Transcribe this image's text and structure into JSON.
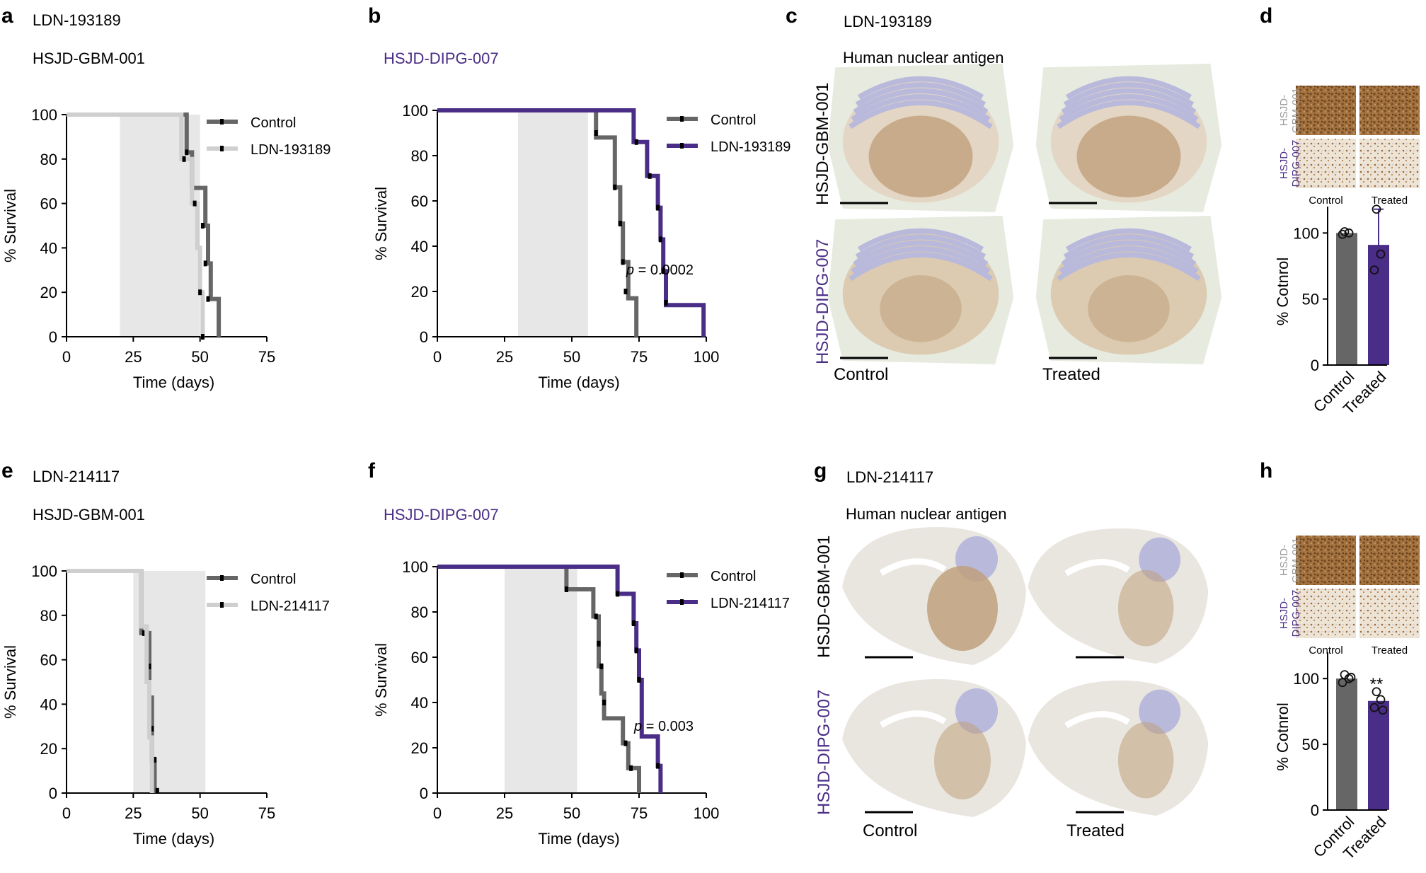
{
  "colors": {
    "control": "#666666",
    "ldn193189_gbm": "#cfcfcf",
    "ldn214117_gbm": "#cfcfcf",
    "treated_dipg": "#4a2d86",
    "shade": "#e7e7e7",
    "tissue_bg": "#e6eadf",
    "tissue_brown": "#bfa07c",
    "cerebellum_blue": "#b9b9dc"
  },
  "panels": {
    "a": {
      "letter": "a",
      "compound": "LDN-193189",
      "model": "HSJD-GBM-001"
    },
    "b": {
      "letter": "b",
      "model": "HSJD-DIPG-007"
    },
    "c": {
      "letter": "c",
      "compound": "LDN-193189",
      "stain": "Human nuclear antigen",
      "row_labels": [
        "HSJD-GBM-001",
        "HSJD-DIPG-007"
      ],
      "col_labels": [
        "Control",
        "Treated"
      ]
    },
    "d": {
      "letter": "d",
      "mini_row_labels": [
        "HSJD-\nGBM-001",
        "HSJD-\nDIPG-007"
      ],
      "mini_col_labels": [
        "Control",
        "Treated"
      ]
    },
    "e": {
      "letter": "e",
      "compound": "LDN-214117",
      "model": "HSJD-GBM-001"
    },
    "f": {
      "letter": "f",
      "model": "HSJD-DIPG-007"
    },
    "g": {
      "letter": "g",
      "compound": "LDN-214117",
      "stain": "Human nuclear antigen",
      "row_labels": [
        "HSJD-GBM-001",
        "HSJD-DIPG-007"
      ],
      "col_labels": [
        "Control",
        "Treated"
      ]
    },
    "h": {
      "letter": "h",
      "mini_row_labels": [
        "HSJD-\nGBM-001",
        "HSJD-\nDIPG-007"
      ],
      "mini_col_labels": [
        "Control",
        "Treated"
      ],
      "significance": "**"
    }
  },
  "chart_data": [
    {
      "id": "a",
      "type": "line",
      "title": "",
      "xlabel": "Time (days)",
      "ylabel": "% Survival",
      "xlim": [
        0,
        75
      ],
      "ylim": [
        0,
        100
      ],
      "xticks": [
        0,
        25,
        50,
        75
      ],
      "yticks": [
        0,
        20,
        40,
        60,
        80,
        100
      ],
      "shaded_x": [
        20,
        50
      ],
      "legend": "top-right",
      "series": [
        {
          "name": "Control",
          "color": "control",
          "steps": [
            [
              0,
              100
            ],
            [
              45,
              100
            ],
            [
              45,
              83
            ],
            [
              47,
              83
            ],
            [
              47,
              67
            ],
            [
              52,
              67
            ],
            [
              52,
              50
            ],
            [
              53,
              50
            ],
            [
              53,
              33
            ],
            [
              54,
              33
            ],
            [
              54,
              17
            ],
            [
              57,
              17
            ],
            [
              57,
              0
            ]
          ],
          "censor": [
            [
              45,
              83
            ],
            [
              47,
              67
            ],
            [
              51,
              50
            ],
            [
              52,
              33
            ],
            [
              53,
              17
            ]
          ]
        },
        {
          "name": "LDN-193189",
          "color": "ldn193189_gbm",
          "steps": [
            [
              0,
              100
            ],
            [
              43,
              100
            ],
            [
              43,
              80
            ],
            [
              47,
              80
            ],
            [
              47,
              60
            ],
            [
              49,
              60
            ],
            [
              49,
              40
            ],
            [
              50,
              40
            ],
            [
              50,
              20
            ],
            [
              51,
              20
            ],
            [
              51,
              0
            ]
          ],
          "censor": [
            [
              44,
              80
            ],
            [
              48,
              60
            ],
            [
              50,
              20
            ],
            [
              51,
              0
            ]
          ]
        }
      ]
    },
    {
      "id": "b",
      "type": "line",
      "title": "",
      "xlabel": "Time (days)",
      "ylabel": "% Survival",
      "xlim": [
        0,
        100
      ],
      "ylim": [
        0,
        100
      ],
      "xticks": [
        0,
        25,
        50,
        75,
        100
      ],
      "yticks": [
        0,
        20,
        40,
        60,
        80,
        100
      ],
      "shaded_x": [
        30,
        56
      ],
      "legend": "top-right",
      "annotation": {
        "p_label": "p",
        "text": " = 0.0002"
      },
      "series": [
        {
          "name": "Control",
          "color": "control",
          "steps": [
            [
              0,
              100
            ],
            [
              59,
              100
            ],
            [
              59,
              88
            ],
            [
              66,
              88
            ],
            [
              66,
              66
            ],
            [
              68,
              66
            ],
            [
              68,
              50
            ],
            [
              69,
              50
            ],
            [
              69,
              33
            ],
            [
              71,
              33
            ],
            [
              71,
              17
            ],
            [
              74,
              17
            ],
            [
              74,
              0
            ]
          ],
          "censor": [
            [
              59,
              90
            ],
            [
              66,
              66
            ],
            [
              68,
              50
            ],
            [
              69,
              33
            ],
            [
              70,
              20
            ]
          ]
        },
        {
          "name": "LDN-193189",
          "color": "treated_dipg",
          "steps": [
            [
              0,
              100
            ],
            [
              73,
              100
            ],
            [
              73,
              86
            ],
            [
              78,
              86
            ],
            [
              78,
              71
            ],
            [
              82,
              71
            ],
            [
              82,
              57
            ],
            [
              83,
              57
            ],
            [
              83,
              43
            ],
            [
              84,
              43
            ],
            [
              84,
              29
            ],
            [
              85,
              29
            ],
            [
              85,
              14
            ],
            [
              99,
              14
            ],
            [
              99,
              0
            ]
          ],
          "censor": [
            [
              74,
              86
            ],
            [
              79,
              71
            ],
            [
              82,
              57
            ],
            [
              83,
              43
            ],
            [
              84,
              29
            ],
            [
              85,
              15
            ]
          ]
        }
      ]
    },
    {
      "id": "d",
      "type": "bar",
      "xlabel": "",
      "ylabel": "% Cotnrol",
      "ylim": [
        0,
        120
      ],
      "yticks": [
        0,
        50,
        100
      ],
      "categories": [
        "Control",
        "Treated"
      ],
      "values": [
        100,
        91
      ],
      "errors": [
        0,
        27
      ],
      "points": [
        [
          101,
          100,
          99
        ],
        [
          118,
          84,
          72
        ]
      ],
      "colors": [
        "control",
        "treated_dipg"
      ]
    },
    {
      "id": "e",
      "type": "line",
      "title": "",
      "xlabel": "Time (days)",
      "ylabel": "% Survival",
      "xlim": [
        0,
        75
      ],
      "ylim": [
        0,
        100
      ],
      "xticks": [
        0,
        25,
        50,
        75
      ],
      "yticks": [
        0,
        20,
        40,
        60,
        80,
        100
      ],
      "shaded_x": [
        25,
        52
      ],
      "legend": "top-right",
      "series": [
        {
          "name": "Control",
          "color": "control",
          "steps": [
            [
              0,
              100
            ],
            [
              28,
              100
            ],
            [
              28,
              72
            ],
            [
              31,
              72
            ],
            [
              31,
              43
            ],
            [
              32,
              43
            ],
            [
              32,
              15
            ],
            [
              33,
              15
            ],
            [
              33,
              0
            ]
          ],
          "censor": [
            [
              28,
              86
            ],
            [
              29,
              72
            ],
            [
              31,
              57
            ],
            [
              31,
              43
            ],
            [
              32,
              29
            ],
            [
              33,
              15
            ],
            [
              34,
              1
            ]
          ]
        },
        {
          "name": "LDN-214117",
          "color": "ldn214117_gbm",
          "steps": [
            [
              0,
              100
            ],
            [
              28,
              100
            ],
            [
              28,
              75
            ],
            [
              30,
              75
            ],
            [
              30,
              50
            ],
            [
              31,
              50
            ],
            [
              31,
              25
            ],
            [
              32,
              25
            ],
            [
              32,
              0
            ]
          ],
          "censor": []
        }
      ]
    },
    {
      "id": "f",
      "type": "line",
      "title": "",
      "xlabel": "Time (days)",
      "ylabel": "% Survival",
      "xlim": [
        0,
        100
      ],
      "ylim": [
        0,
        100
      ],
      "xticks": [
        0,
        25,
        50,
        75,
        100
      ],
      "yticks": [
        0,
        20,
        40,
        60,
        80,
        100
      ],
      "shaded_x": [
        25,
        52
      ],
      "legend": "top-right",
      "annotation": {
        "p_label": "p",
        "text": " = 0.003"
      },
      "series": [
        {
          "name": "Control",
          "color": "control",
          "steps": [
            [
              0,
              100
            ],
            [
              48,
              100
            ],
            [
              48,
              90
            ],
            [
              58,
              90
            ],
            [
              58,
              78
            ],
            [
              60,
              78
            ],
            [
              60,
              56
            ],
            [
              61,
              56
            ],
            [
              61,
              44
            ],
            [
              62,
              44
            ],
            [
              62,
              33
            ],
            [
              69,
              33
            ],
            [
              69,
              22
            ],
            [
              71,
              22
            ],
            [
              71,
              11
            ],
            [
              75,
              11
            ],
            [
              75,
              0
            ]
          ],
          "censor": [
            [
              48,
              90
            ],
            [
              59,
              78
            ],
            [
              60,
              66
            ],
            [
              61,
              56
            ],
            [
              62,
              40
            ],
            [
              70,
              22
            ],
            [
              72,
              11
            ]
          ]
        },
        {
          "name": "LDN-214117",
          "color": "treated_dipg",
          "steps": [
            [
              0,
              100
            ],
            [
              67,
              100
            ],
            [
              67,
              88
            ],
            [
              73,
              88
            ],
            [
              73,
              75
            ],
            [
              74,
              75
            ],
            [
              74,
              63
            ],
            [
              75,
              63
            ],
            [
              75,
              50
            ],
            [
              76,
              50
            ],
            [
              76,
              25
            ],
            [
              82,
              25
            ],
            [
              82,
              12
            ],
            [
              83,
              12
            ],
            [
              83,
              0
            ]
          ],
          "censor": [
            [
              67,
              88
            ],
            [
              73,
              75
            ],
            [
              74,
              63
            ],
            [
              75,
              50
            ],
            [
              82,
              12
            ]
          ]
        }
      ]
    },
    {
      "id": "h",
      "type": "bar",
      "xlabel": "",
      "ylabel": "% Cotnrol",
      "ylim": [
        0,
        120
      ],
      "yticks": [
        0,
        50,
        100
      ],
      "categories": [
        "Control",
        "Treated"
      ],
      "values": [
        100,
        83
      ],
      "errors": [
        0,
        0
      ],
      "points": [
        [
          103,
          100,
          97,
          101
        ],
        [
          90,
          84,
          78,
          76
        ]
      ],
      "colors": [
        "control",
        "treated_dipg"
      ]
    }
  ]
}
